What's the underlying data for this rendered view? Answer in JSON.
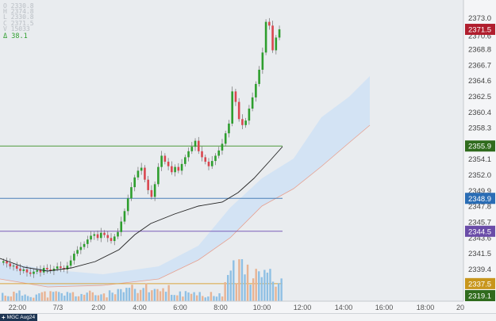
{
  "ohlc_panel": {
    "open": "O 2330.8",
    "high": "H 2374.8",
    "low": "L 2330.8",
    "close": "C 2371.5",
    "volume": "V 15033",
    "change": "Δ  38.1"
  },
  "price_axis": {
    "ticks": [
      "2373.0",
      "2370.6",
      "2368.8",
      "2366.7",
      "2364.6",
      "2362.5",
      "2360.4",
      "2358.3",
      "2354.1",
      "2352.0",
      "2349.9",
      "2347.8",
      "2345.7",
      "2343.6",
      "2341.5",
      "2339.4"
    ],
    "badges": [
      {
        "label": "2371.5",
        "value": 2371.5,
        "bg": "#b01e2e"
      },
      {
        "label": "2355.9",
        "value": 2355.9,
        "bg": "#2f6b1d"
      },
      {
        "label": "2348.9",
        "value": 2348.9,
        "bg": "#2a6db5"
      },
      {
        "label": "2344.5",
        "value": 2344.5,
        "bg": "#6a4ca8"
      },
      {
        "label": "2337.5",
        "value": 2337.5,
        "bg": "#c8961c"
      },
      {
        "label": "2319.1",
        "value": 2319.1,
        "bg": "#2f6b1d"
      }
    ]
  },
  "time_axis": {
    "labels": [
      "22:00",
      "7/3",
      "2:00",
      "4:00",
      "6:00",
      "8:00",
      "10:00",
      "12:00",
      "14:00",
      "16:00",
      "18:00",
      "20"
    ]
  },
  "chart_data": {
    "type": "candlestick",
    "price_range": [
      2336.0,
      2375.0
    ],
    "horizontal_lines": [
      {
        "value": 2355.9,
        "color": "#4f9a3a"
      },
      {
        "value": 2348.9,
        "color": "#4a7fb8"
      },
      {
        "value": 2344.5,
        "color": "#7b5cb8"
      },
      {
        "value": 2337.5,
        "color": "#d9a43a"
      }
    ],
    "colors": {
      "up": "#2e9e2e",
      "down": "#d9464f",
      "volume_up": "#8fc0e4",
      "volume_down": "#e8b393",
      "cloud": "#cfe2f5",
      "ma_line": "#222222"
    }
  },
  "bottom_bar": {
    "symbol": "MGC Aug24"
  }
}
